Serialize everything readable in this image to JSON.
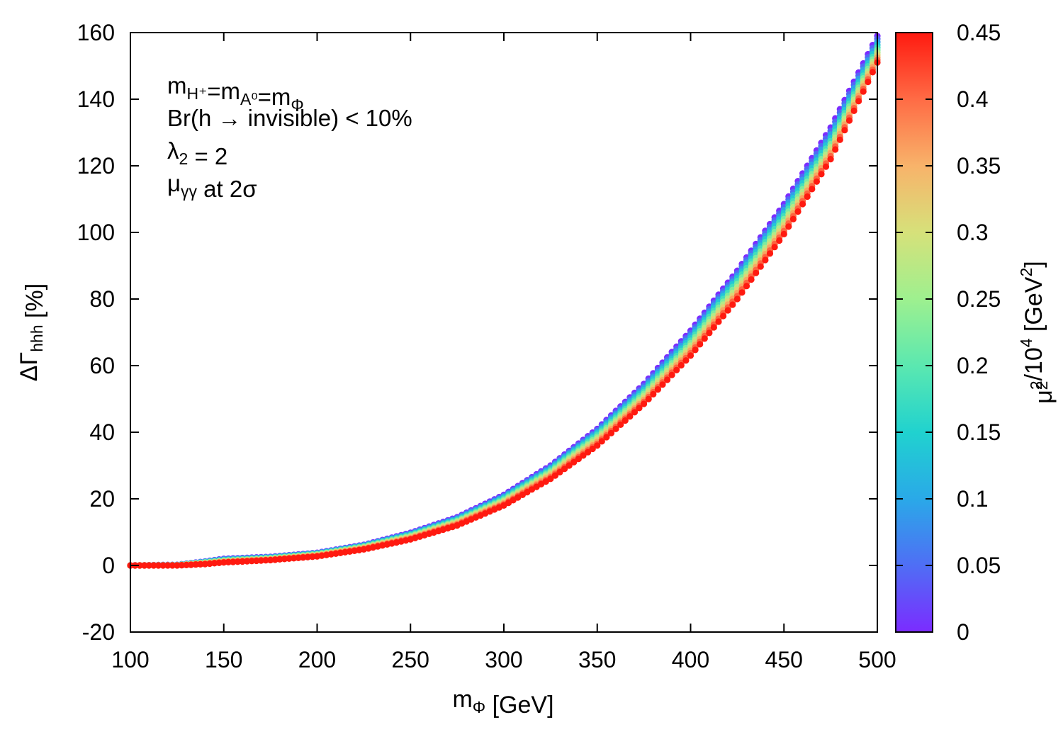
{
  "chart_data": {
    "type": "scatter",
    "title": "",
    "xlabel": {
      "main": "m",
      "sub": "Φ",
      "unit": " [GeV]"
    },
    "ylabel": {
      "main": "ΔΓ",
      "sub": "hhh",
      "unit": " [%]"
    },
    "xlim": [
      100,
      500
    ],
    "ylim": [
      -20,
      160
    ],
    "xticks": [
      100,
      150,
      200,
      250,
      300,
      350,
      400,
      450,
      500
    ],
    "yticks": [
      -20,
      0,
      20,
      40,
      60,
      80,
      100,
      120,
      140,
      160
    ],
    "colorbar": {
      "label": {
        "main": "μ",
        "sub": "2",
        "sup1": "2",
        "mid": "/10",
        "sup2": "4",
        "tail": " [GeV",
        "sup3": "2",
        "end": "]"
      },
      "range": [
        0,
        0.45
      ],
      "ticks": [
        "0",
        "0.05",
        "0.1",
        "0.15",
        "0.2",
        "0.25",
        "0.3",
        "0.35",
        "0.4",
        "0.45"
      ],
      "palette": [
        "#7b2cff",
        "#4f6ef5",
        "#2aa9e8",
        "#20d2cf",
        "#5be8b0",
        "#9ef08f",
        "#d6e17a",
        "#f8b36a",
        "#ff6b45",
        "#ff1a10"
      ]
    },
    "series": [
      {
        "name": "μ2²/10⁴ = 0",
        "color_value": 0.0,
        "points": [
          [
            100,
            0
          ],
          [
            125,
            0.2
          ],
          [
            140,
            1.2
          ],
          [
            150,
            2.0
          ],
          [
            175,
            2.6
          ],
          [
            200,
            3.8
          ],
          [
            225,
            6.2
          ],
          [
            250,
            9.8
          ],
          [
            275,
            14.5
          ],
          [
            300,
            21.2
          ],
          [
            325,
            30.0
          ],
          [
            350,
            41.0
          ],
          [
            375,
            54.5
          ],
          [
            400,
            70.5
          ],
          [
            425,
            88.5
          ],
          [
            450,
            108.5
          ],
          [
            475,
            131.5
          ],
          [
            500,
            159.0
          ]
        ]
      },
      {
        "name": "μ2²/10⁴ = 0.15",
        "color_value": 0.15,
        "points": [
          [
            100,
            0
          ],
          [
            125,
            0.1
          ],
          [
            140,
            1.0
          ],
          [
            150,
            1.6
          ],
          [
            175,
            2.3
          ],
          [
            200,
            3.5
          ],
          [
            225,
            5.8
          ],
          [
            250,
            9.2
          ],
          [
            275,
            13.7
          ],
          [
            300,
            20.2
          ],
          [
            325,
            28.8
          ],
          [
            350,
            39.5
          ],
          [
            375,
            52.5
          ],
          [
            400,
            68.0
          ],
          [
            425,
            86.0
          ],
          [
            450,
            105.5
          ],
          [
            475,
            128.0
          ],
          [
            500,
            156.0
          ]
        ]
      },
      {
        "name": "μ2²/10⁴ = 0.30",
        "color_value": 0.3,
        "points": [
          [
            100,
            0
          ],
          [
            125,
            0.05
          ],
          [
            140,
            0.7
          ],
          [
            150,
            1.2
          ],
          [
            175,
            1.9
          ],
          [
            200,
            3.1
          ],
          [
            225,
            5.3
          ],
          [
            250,
            8.5
          ],
          [
            275,
            12.9
          ],
          [
            300,
            19.1
          ],
          [
            325,
            27.5
          ],
          [
            350,
            37.8
          ],
          [
            375,
            50.5
          ],
          [
            400,
            65.5
          ],
          [
            425,
            83.0
          ],
          [
            450,
            102.5
          ],
          [
            475,
            125.0
          ],
          [
            500,
            153.5
          ]
        ]
      },
      {
        "name": "μ2²/10⁴ = 0.45",
        "color_value": 0.45,
        "points": [
          [
            100,
            0
          ],
          [
            125,
            0
          ],
          [
            140,
            0.4
          ],
          [
            150,
            0.9
          ],
          [
            175,
            1.6
          ],
          [
            200,
            2.7
          ],
          [
            225,
            4.8
          ],
          [
            250,
            7.8
          ],
          [
            275,
            12.0
          ],
          [
            300,
            18.0
          ],
          [
            325,
            26.0
          ],
          [
            350,
            36.0
          ],
          [
            375,
            48.5
          ],
          [
            400,
            63.0
          ],
          [
            425,
            80.0
          ],
          [
            450,
            99.5
          ],
          [
            475,
            122.0
          ],
          [
            500,
            151.0
          ]
        ]
      }
    ],
    "annotations": [
      {
        "parts": [
          [
            "m",
            ""
          ],
          [
            "H⁺",
            "sub"
          ],
          [
            "=m",
            ""
          ],
          [
            "A⁰",
            "sub"
          ],
          [
            "=m",
            ""
          ],
          [
            "Φ",
            "sub"
          ]
        ]
      },
      {
        "parts": [
          [
            "Br(h → invisible) < 10%",
            ""
          ]
        ]
      },
      {
        "parts": [
          [
            "λ",
            ""
          ],
          [
            "2",
            "sub"
          ],
          [
            " = 2",
            ""
          ]
        ]
      },
      {
        "parts": [
          [
            "μ",
            ""
          ],
          [
            "γγ",
            "sub"
          ],
          [
            " at 2σ",
            ""
          ]
        ]
      }
    ]
  }
}
